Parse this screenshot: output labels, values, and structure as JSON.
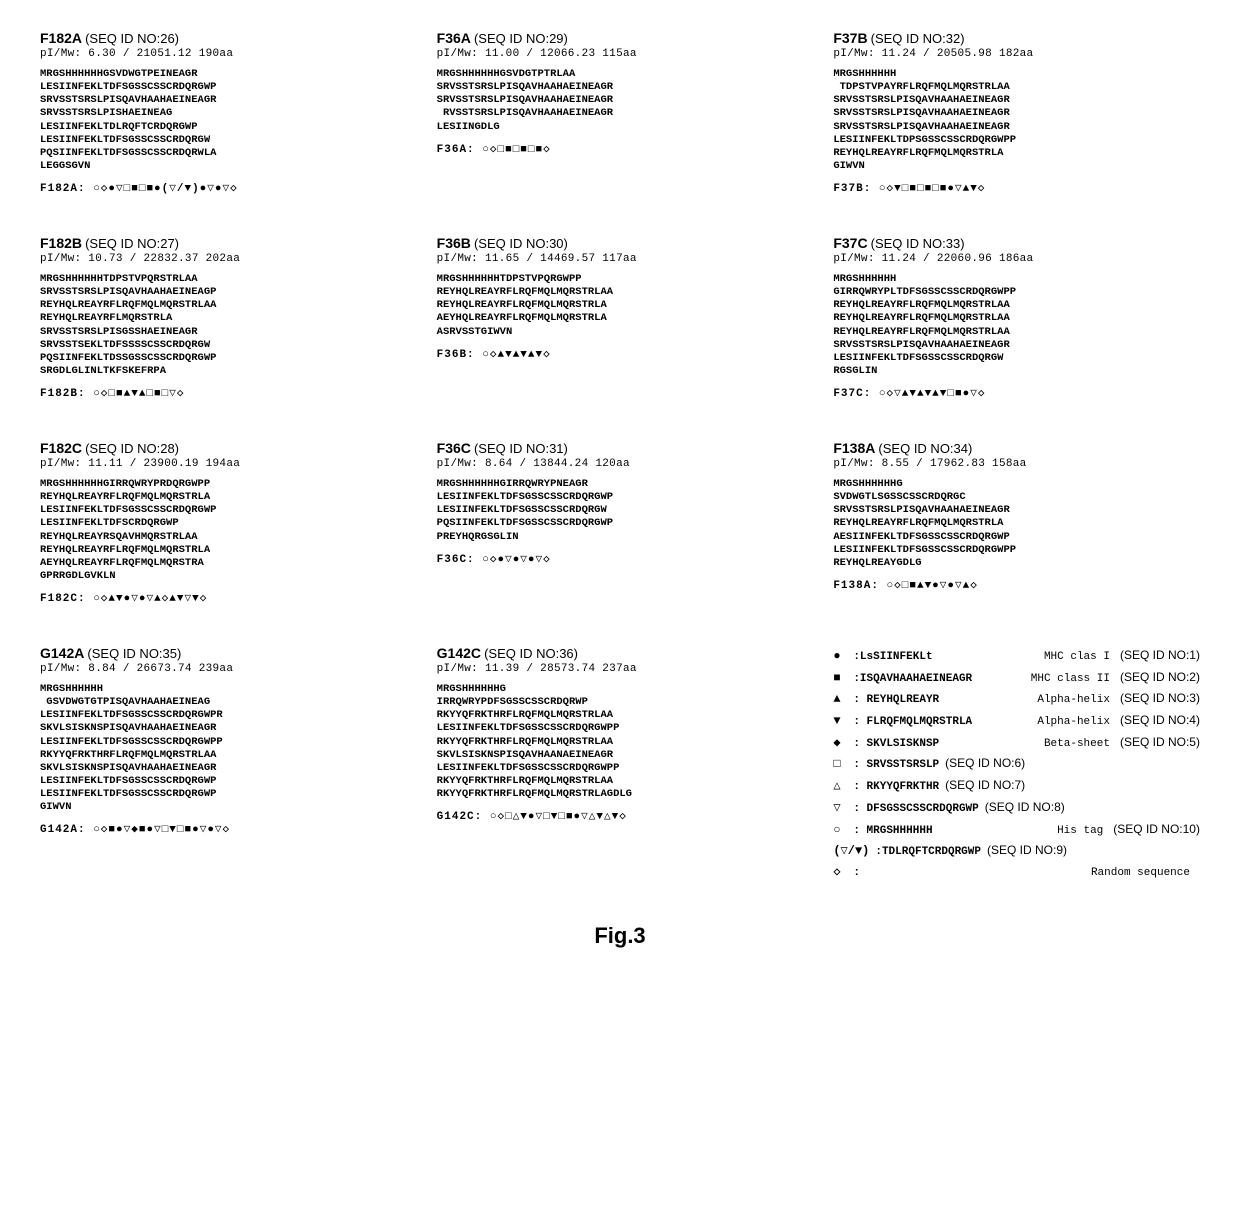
{
  "entries": [
    {
      "name": "F182A",
      "seqid": "(SEQ ID NO:26)",
      "pimw": "pI/Mw: 6.30 / 21051.12  190aa",
      "seq": "MRGSHHHHHHGSVDWGTPEINEAGR\nLESIINFEKLTDFSGSSCSSCRDQRGWP\nSRVSSTSRSLPISQAVHAAHAEINEAGR\nSRVSSTSRSLPISHAEINEAG\nLESIINFEKLTDLRQFTCRDQRGWP\nLESIINFEKLTDFSGSSCSSCRDQRGW\nPQSIINFEKLTDFSGSSCSSCRDQRWLA\nLEGGSGVN",
      "symline": "F182A: ○◇●▽□■□■●(▽/▼)●▽●▽◇"
    },
    {
      "name": "F36A",
      "seqid": "(SEQ ID NO:29)",
      "pimw": "pI/Mw: 11.00 / 12066.23   115aa",
      "seq": "MRGSHHHHHHGSVDGTPTRLAA\nSRVSSTSRSLPISQAVHAAHAEINEAGR\nSRVSSTSRSLPISQAVHAAHAEINEAGR\n RVSSTSRSLPISQAVHAAHAEINEAGR\nLESIINGDLG",
      "symline": "F36A:  ○◇□■□■□■◇"
    },
    {
      "name": "F37B",
      "seqid": "(SEQ ID NO:32)",
      "pimw": "pI/Mw: 11.24 / 20505.98  182aa",
      "seq": "MRGSHHHHHH\n TDPSTVPAYRFLRQFMQLMQRSTRLAA\nSRVSSTSRSLPISQAVHAAHAEINEAGR\nSRVSSTSRSLPISQAVHAAHAEINEAGR\nSRVSSTSRSLPISQAVHAAHAEINEAGR\nLESIINFEKLTDPSGSSCSSCRDQRGWPP\nREYHQLREAYRFLRQFMQLMQRSTRLA\nGIWVN",
      "symline": "F37B:  ○◇▼□■□■□■●▽▲▼◇"
    },
    {
      "name": "F182B",
      "seqid": "(SEQ ID NO:27)",
      "pimw": "pI/Mw: 10.73 / 22832.37 202aa",
      "seq": "MRGSHHHHHHTDPSTVPQRSTRLAA\nSRVSSTSRSLPISQAVHAAHAEINEAGP\nREYHQLREAYRFLRQFMQLMQRSTRLAA\nREYHQLREAYRFLMQRSTRLA\nSRVSSTSRSLPISGSSHAEINEAGR\nSRVSSTSEKLTDFSSSSCSSCRDQRGW\nPQSIINFEKLTDSSGSSCSSCRDQRGWP\nSRGDLGLINLTKFSKEFRPA",
      "symline": "F182B: ○◇□■▲▼▲□■□▽◇"
    },
    {
      "name": "F36B",
      "seqid": "(SEQ ID NO:30)",
      "pimw": "pI/Mw: 11.65 / 14469.57  117aa",
      "seq": "MRGSHHHHHHTDPSTVPQRGWPP\nREYHQLREAYRFLRQFMQLMQRSTRLAA\nREYHQLREAYRFLRQFMQLMQRSTRLA\nAEYHQLREAYRFLRQFMQLMQRSTRLA\nASRVSSTGIWVN",
      "symline": "F36B:  ○◇▲▼▲▼▲▼◇"
    },
    {
      "name": "F37C",
      "seqid": "(SEQ ID NO:33)",
      "pimw": "pI/Mw: 11.24 / 22060.96  186aa",
      "seq": "MRGSHHHHHH\nGIRRQWRYPLTDFSGSSCSSCRDQRGWPP\nREYHQLREAYRFLRQFMQLMQRSTRLAA\nREYHQLREAYRFLRQFMQLMQRSTRLAA\nREYHQLREAYRFLRQFMQLMQRSTRLAA\nSRVSSTSRSLPISQAVHAAHAEINEAGR\nLESIINFEKLTDFSGSSCSSCRDQRGW\nRGSGLIN",
      "symline": "F37C:  ○◇▽▲▼▲▼▲▼□■●▽◇"
    },
    {
      "name": "F182C",
      "seqid": "(SEQ ID NO:28)",
      "pimw": "pI/Mw: 11.11 / 23900.19  194aa",
      "seq": "MRGSHHHHHHGIRRQWRYPRDQRGWPP\nREYHQLREAYRFLRQFMQLMQRSTRLA\nLESIINFEKLTDFSGSSCSSCRDQRGWP\nLESIINFEKLTDFSCRDQRGWP\nREYHQLREAYRSQAVHMQRSTRLAA\nREYHQLREAYRFLRQFMQLMQRSTRLA\nAEYHQLREAYRFLRQFMQLMQRSTRA\nGPRRGDLGVKLN",
      "symline": "F182C: ○◇▲▼●▽●▽▲◇▲▼▽▼◇"
    },
    {
      "name": "F36C",
      "seqid": "(SEQ ID NO:31)",
      "pimw": "pI/Mw: 8.64 / 13844.24   120aa",
      "seq": "MRGSHHHHHHGIRRQWRYPNEAGR\nLESIINFEKLTDFSGSSCSSCRDQRGWP\nLESIINFEKLTDFSGSSCSSCRDQRGW\nPQSIINFEKLTDFSGSSCSSCRDQRGWP\nPREYHQRGSGLIN",
      "symline": "F36C:  ○◇●▽●▽●▽◇"
    },
    {
      "name": "F138A",
      "seqid": "(SEQ ID NO:34)",
      "pimw": "pI/Mw: 8.55 / 17962.83   158aa",
      "seq": "MRGSHHHHHHG\nSVDWGTLSGSSCSSCRDQRGC\nSRVSSTSRSLPISQAVHAAHAEINEAGR\nREYHQLREAYRFLRQFMQLMQRSTRLA\nAESIINFEKLTDFSGSSCSSCRDQRGWP\nLESIINFEKLTDFSGSSCSSCRDQRGWPP\nREYHQLREAYGDLG",
      "symline": "F138A: ○◇□■▲▼●▽●▽▲◇"
    },
    {
      "name": "G142A",
      "seqid": "(SEQ ID NO:35)",
      "pimw": "pI/Mw: 8.84 / 26673.74   239aa",
      "seq": "MRGSHHHHHH\n GSVDWGTGTPISQAVHAAHAEINEAG\nLESIINFEKLTDFSGSSCSSCRDQRGWPR\nSKVLSISKNSPISQAVHAAHAEINEAGR\nLESIINFEKLTDFSGSSCSSCRDQRGWPP\nRKYYQFRKTHRFLRQFMQLMQRSTRLAA\nSKVLSISKNSPISQAVHAAHAEINEAGR\nLESIINFEKLTDFSGSSCSSCRDQRGWP\nLESIINFEKLTDFSGSSCSSCRDQRGWP\nGIWVN",
      "symline": "G142A: ○◇■●▽◆■●▽□▼□■●▽●▽◇"
    },
    {
      "name": "G142C",
      "seqid": "(SEQ ID NO:36)",
      "pimw": "pI/Mw: 11.39 / 28573.74 237aa",
      "seq": "MRGSHHHHHHG\nIRRQWRYPDFSGSSCSSCRDQRWP\nRKYYQFRKTHRFLRQFMQLMQRSTRLAA\nLESIINFEKLTDFSGSSCSSCRDQRGWPP\nRKYYQFRKTHRFLRQFMQLMQRSTRLAA\nSKVLSISKNSPISQAVHAANAEINEAGR\nLESIINFEKLTDFSGSSCSSCRDQRGWPP\nRKYYQFRKTHRFLRQFMQLMQRSTRLAA\nRKYYQFRKTHRFLRQFMQLMQRSTRLAGDLG",
      "symline": "G142C: ○◇□△▼●▽□▼□■●▽△▼△▼◇"
    }
  ],
  "legend": [
    {
      "sym": "●",
      "motif": ":LsSIINFEKLt",
      "desc": "MHC clas I",
      "seqlabel": "(SEQ ID NO:1)"
    },
    {
      "sym": "■",
      "motif": ":ISQAVHAAHAEINEAGR",
      "desc": "MHC class II",
      "seqlabel": "(SEQ ID NO:2)"
    },
    {
      "sym": "▲",
      "motif": ": REYHQLREAYR",
      "desc": "Alpha-helix",
      "seqlabel": "(SEQ ID NO:3)"
    },
    {
      "sym": "▼",
      "motif": ": FLRQFMQLMQRSTRLA",
      "desc": "Alpha-helix",
      "seqlabel": "(SEQ ID NO:4)"
    },
    {
      "sym": "◆",
      "motif": ": SKVLSISKNSP",
      "desc": "Beta-sheet",
      "seqlabel": "(SEQ ID NO:5)"
    },
    {
      "sym": "□",
      "motif": ": SRVSSTSRSLP",
      "desc": "",
      "seqlabel": "(SEQ ID NO:6)"
    },
    {
      "sym": "△",
      "motif": ": RKYYQFRKTHR",
      "desc": "",
      "seqlabel": "(SEQ ID NO:7)"
    },
    {
      "sym": "▽",
      "motif": ": DFSGSSCSSCRDQRGWP",
      "desc": "",
      "seqlabel": "(SEQ ID NO:8)"
    },
    {
      "sym": "○",
      "motif": ": MRGSHHHHHH",
      "desc": "His tag",
      "seqlabel": "(SEQ ID NO:10)"
    },
    {
      "sym": "(▽/▼)",
      "motif": ":TDLRQFTCRDQRGWP",
      "desc": "",
      "seqlabel": "(SEQ ID NO:9)"
    },
    {
      "sym": "◇",
      "motif": ":",
      "desc": "Random sequence",
      "seqlabel": ""
    }
  ],
  "figcap": "Fig.3"
}
